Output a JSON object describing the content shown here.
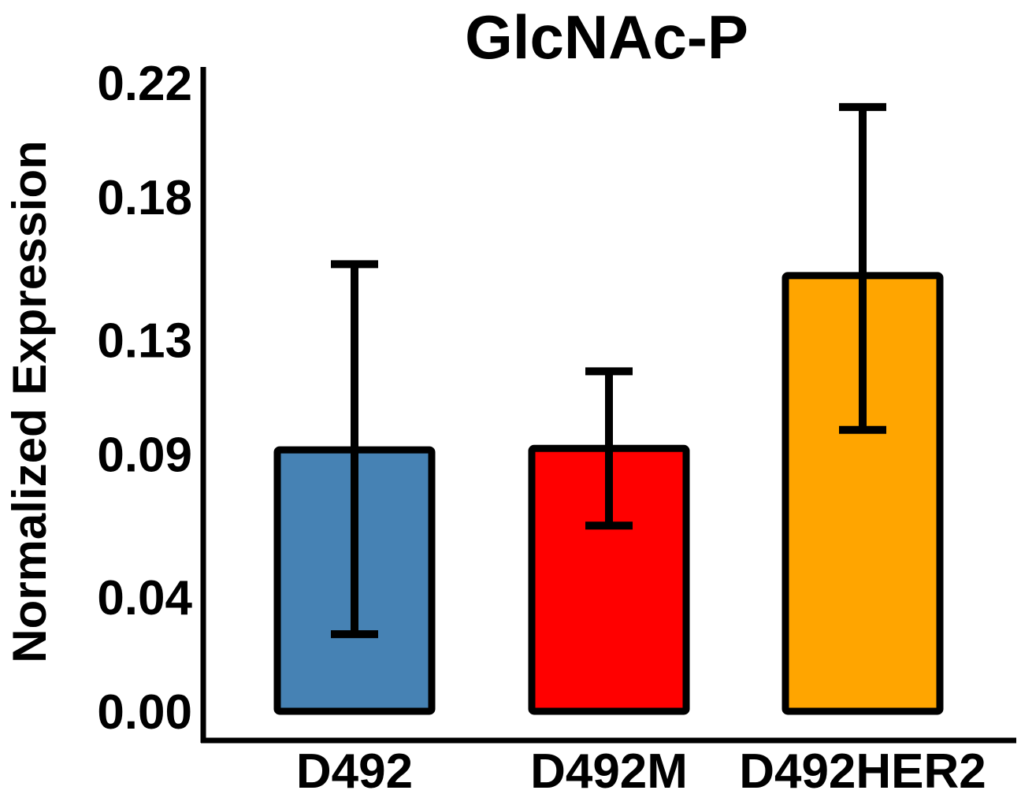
{
  "chart_data": {
    "type": "bar",
    "title": "GlcNAc-P",
    "xlabel": "",
    "ylabel": "Normalized Expression",
    "categories": [
      "D492",
      "D492M",
      "D492HER2"
    ],
    "values": [
      0.0915,
      0.092,
      0.1525
    ],
    "error_low": [
      0.027,
      0.065,
      0.0985
    ],
    "error_high": [
      0.1565,
      0.119,
      0.2115
    ],
    "colors": [
      "#4682B4",
      "#FF0000",
      "#FFA500"
    ],
    "yticks": [
      "0.00",
      "0.04",
      "0.09",
      "0.13",
      "0.18",
      "0.22"
    ],
    "ylim": [
      0,
      0.226
    ],
    "grid": false,
    "legend": "none"
  }
}
